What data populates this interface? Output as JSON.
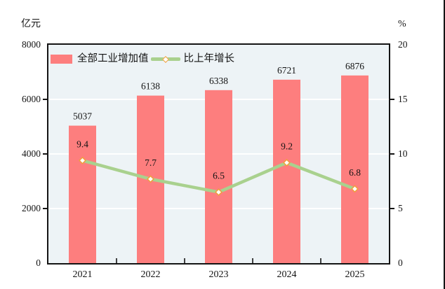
{
  "legend": {
    "bar_label": "全部工业增加值",
    "line_label": "比上年增长"
  },
  "chart_data": {
    "type": "bar+line",
    "title": "",
    "categories": [
      "2021",
      "2022",
      "2023",
      "2024",
      "2025"
    ],
    "series": [
      {
        "name": "全部工业增加值",
        "type": "bar",
        "axis": "left",
        "values": [
          5037,
          6138,
          6338,
          6721,
          6876
        ],
        "color": "#FD7E7E"
      },
      {
        "name": "比上年增长",
        "type": "line",
        "axis": "right",
        "values": [
          9.4,
          7.7,
          6.5,
          9.2,
          6.8
        ],
        "color": "#A9D18E",
        "marker": "diamond",
        "marker_ring_color": "#F0A03C",
        "marker_fill": "#FFFFFF"
      }
    ],
    "left_axis": {
      "unit": "亿元",
      "range": [
        0,
        8000
      ],
      "ticks": [
        0,
        2000,
        4000,
        6000,
        8000
      ]
    },
    "right_axis": {
      "unit": "%",
      "range": [
        0,
        20
      ],
      "ticks": [
        0,
        5,
        10,
        15,
        20
      ]
    },
    "grid": true,
    "gridline_color": "#FFFFFF",
    "plot_bg": "#EDF3F6",
    "frame_color": "#141414",
    "legend_position": "top-left-inside"
  }
}
